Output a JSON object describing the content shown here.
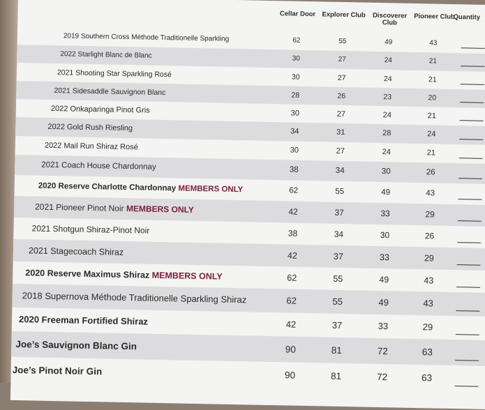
{
  "headers": {
    "cellar": "Cellar Door",
    "explorer": "Explorer Club",
    "discoverer": "Discoverer Club",
    "pioneer": "Pioneer Club",
    "quantity": "Quantity"
  },
  "rows": [
    {
      "name": "2019 Southern Cross Méthode Traditionelle Sparkling",
      "members": "",
      "cellar": "62",
      "explorer": "55",
      "discoverer": "49",
      "pioneer": "43"
    },
    {
      "name": "2022 Starlight Blanc de Blanc",
      "members": "",
      "cellar": "30",
      "explorer": "27",
      "discoverer": "24",
      "pioneer": "21"
    },
    {
      "name": "2021 Shooting Star Sparkling Rosé",
      "members": "",
      "cellar": "30",
      "explorer": "27",
      "discoverer": "24",
      "pioneer": "21"
    },
    {
      "name": "2021 Sidesaddle Sauvignon Blanc",
      "members": "",
      "cellar": "28",
      "explorer": "26",
      "discoverer": "23",
      "pioneer": "20"
    },
    {
      "name": "2022 Onkaparinga Pinot Gris",
      "members": "",
      "cellar": "30",
      "explorer": "27",
      "discoverer": "24",
      "pioneer": "21"
    },
    {
      "name": "2022 Gold Rush Riesling",
      "members": "",
      "cellar": "34",
      "explorer": "31",
      "discoverer": "28",
      "pioneer": "24"
    },
    {
      "name": "2022 Mail Run Shiraz Rosé",
      "members": "",
      "cellar": "30",
      "explorer": "27",
      "discoverer": "24",
      "pioneer": "21"
    },
    {
      "name": "2021 Coach House Chardonnay",
      "members": "",
      "cellar": "38",
      "explorer": "34",
      "discoverer": "30",
      "pioneer": "26"
    },
    {
      "name": "2020 Reserve Charlotte Chardonnay",
      "members": "MEMBERS ONLY",
      "cellar": "62",
      "explorer": "55",
      "discoverer": "49",
      "pioneer": "43"
    },
    {
      "name": "2021 Pioneer Pinot Noir",
      "members": "MEMBERS ONLY",
      "cellar": "42",
      "explorer": "37",
      "discoverer": "33",
      "pioneer": "29"
    },
    {
      "name": "2021 Shotgun Shiraz-Pinot Noir",
      "members": "",
      "cellar": "38",
      "explorer": "34",
      "discoverer": "30",
      "pioneer": "26"
    },
    {
      "name": "2021 Stagecoach Shiraz",
      "members": "",
      "cellar": "42",
      "explorer": "37",
      "discoverer": "33",
      "pioneer": "29"
    },
    {
      "name": "2020 Reserve Maximus Shiraz",
      "members": "MEMBERS ONLY",
      "cellar": "62",
      "explorer": "55",
      "discoverer": "49",
      "pioneer": "43"
    },
    {
      "name": "2018 Supernova Méthode Traditionelle Sparkling Shiraz",
      "members": "",
      "cellar": "62",
      "explorer": "55",
      "discoverer": "49",
      "pioneer": "43"
    },
    {
      "name": "2020 Freeman Fortified Shiraz",
      "members": "",
      "cellar": "42",
      "explorer": "37",
      "discoverer": "33",
      "pioneer": "29"
    },
    {
      "name": "Joe’s Sauvignon Blanc Gin",
      "members": "",
      "cellar": "90",
      "explorer": "81",
      "discoverer": "72",
      "pioneer": "63"
    },
    {
      "name": "Joe’s Pinot Noir Gin",
      "members": "",
      "cellar": "90",
      "explorer": "81",
      "discoverer": "72",
      "pioneer": "63"
    }
  ]
}
